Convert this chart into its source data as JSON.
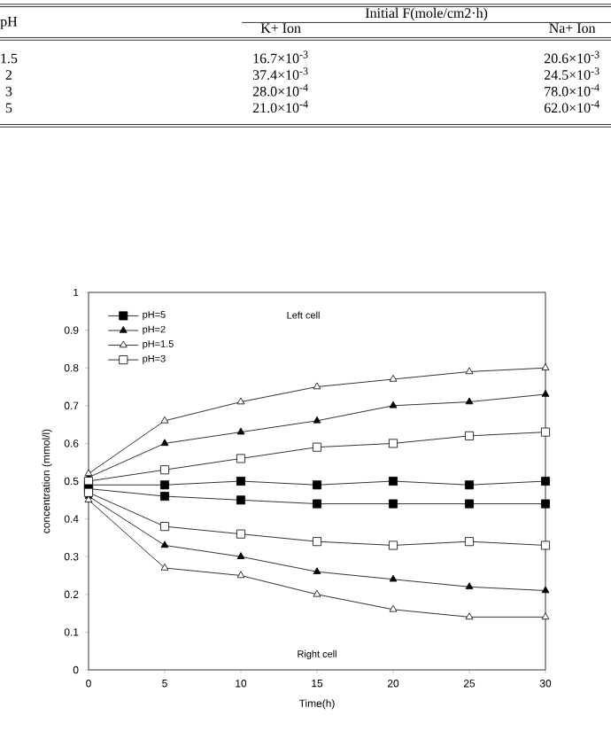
{
  "chart_data": [
    {
      "type": "other",
      "annotations": [
        "pH",
        "Initial  F(mole/cm2·h)",
        "K+  Ion",
        "Na+  Ion",
        "1.5",
        "16.7×10$^{-3}$",
        "20.6×10$^{-3}$",
        "2",
        "37.4×10$^{-3}$",
        "24.5×10$^{-3}$",
        "3",
        "28.0×10$^{-4}$",
        "78.0×10$^{-4}$",
        "5",
        "21.0×10$^{-4}$",
        "62.0×10$^{-4}$"
      ]
    },
    {
      "type": "line",
      "xlabel": "Time(h)",
      "ylabel": "concentration (mmol/l)",
      "x": [
        0,
        5,
        10,
        15,
        20,
        25,
        30
      ],
      "series": [
        {
          "name": "pH=5",
          "color": "#000000",
          "marker": "square",
          "values": [
            0.49,
            0.49,
            0.5,
            0.49,
            0.5,
            0.49,
            0.5
          ]
        },
        {
          "name": "pH=2",
          "color": "#000000",
          "marker": "triangle",
          "values": [
            0.51,
            0.6,
            0.63,
            0.66,
            0.7,
            0.71,
            0.73
          ]
        },
        {
          "name": "pH=1.5",
          "color": "#ffffff",
          "marker": "triangle",
          "values": [
            0.52,
            0.66,
            0.71,
            0.75,
            0.77,
            0.79,
            0.8
          ]
        },
        {
          "name": "pH=3",
          "color": "#ffffff",
          "marker": "square",
          "values": [
            0.5,
            0.53,
            0.56,
            0.59,
            0.6,
            0.62,
            0.63
          ]
        },
        {
          "color": "#000000",
          "marker": "square",
          "values": [
            0.48,
            0.46,
            0.45,
            0.44,
            0.44,
            0.44,
            0.44
          ]
        },
        {
          "color": "#000000",
          "marker": "triangle",
          "values": [
            0.46,
            0.33,
            0.3,
            0.26,
            0.24,
            0.22,
            0.21
          ]
        },
        {
          "color": "#ffffff",
          "marker": "triangle",
          "values": [
            0.45,
            0.27,
            0.25,
            0.2,
            0.16,
            0.14,
            0.14
          ]
        },
        {
          "color": "#ffffff",
          "marker": "square",
          "values": [
            0.47,
            0.38,
            0.36,
            0.34,
            0.33,
            0.34,
            0.33
          ]
        }
      ],
      "xlim": [
        0,
        30
      ],
      "xticks": [
        0,
        5,
        10,
        15,
        20,
        25,
        30
      ],
      "ylim": [
        0,
        1
      ],
      "yticks": [
        0,
        0.1,
        0.2,
        0.3,
        0.4,
        0.5,
        0.6,
        0.7,
        0.8,
        0.9,
        1
      ],
      "legend": "top left",
      "grid": false,
      "line_style": "solid",
      "annotations": [
        "Left cell",
        "Right cell"
      ]
    }
  ]
}
